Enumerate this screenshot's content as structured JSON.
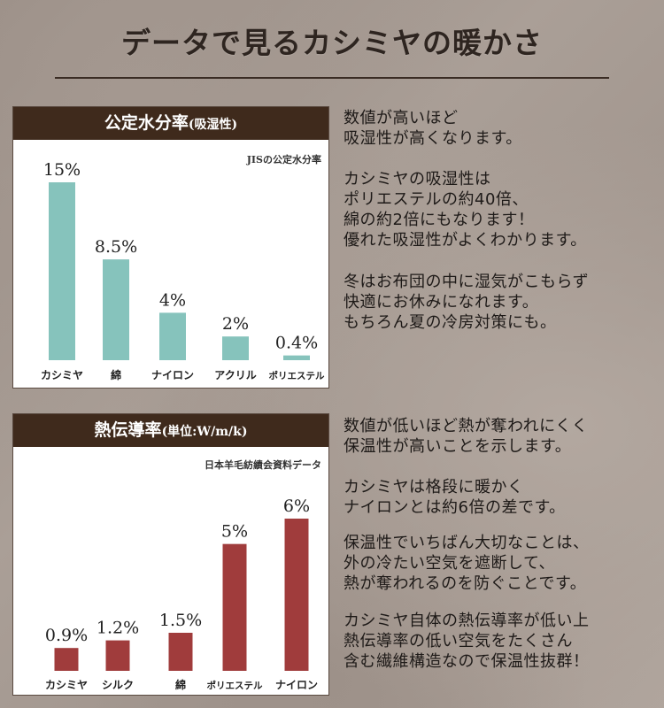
{
  "title": "データで見るカシミヤの暖かさ",
  "colors": {
    "header_bg": "#3f2a1c",
    "teal_bar": "#86c3bc",
    "red_bar": "#a03c3c"
  },
  "chart_data": [
    {
      "type": "bar",
      "title": "公定水分率",
      "title_suffix": "(吸湿性)",
      "source": "JISの公定水分率",
      "categories": [
        "カシミヤ",
        "綿",
        "ナイロン",
        "アクリル",
        "ポリエステル"
      ],
      "values": [
        15,
        8.5,
        4,
        2,
        0.4
      ],
      "value_labels": [
        "15%",
        "8.5%",
        "4%",
        "2%",
        "0.4%"
      ],
      "ylim": [
        0,
        15
      ],
      "color": "#86c3bc"
    },
    {
      "type": "bar",
      "title": "熱伝導率",
      "title_suffix": "(単位:W/m/k)",
      "source": "日本羊毛紡績会資料データ",
      "categories": [
        "カシミヤ",
        "シルク",
        "綿",
        "ポリエステル",
        "ナイロン"
      ],
      "values": [
        0.9,
        1.2,
        1.5,
        5,
        6
      ],
      "value_labels": [
        "0.9%",
        "1.2%",
        "1.5%",
        "5%",
        "6%"
      ],
      "ylim": [
        0,
        6
      ],
      "color": "#a03c3c"
    }
  ],
  "text": {
    "moisture_1": "数値が高いほど\n吸湿性が高くなります。",
    "moisture_2": "カシミヤの吸湿性は\nポリエステルの約40倍、\n綿の約2倍にもなります！\n優れた吸湿性がよくわかります。",
    "moisture_3": "冬はお布団の中に湿気がこもらず\n快適にお休みになれます。\nもちろん夏の冷房対策にも。",
    "thermal_1": "数値が低いほど熱が奪われにくく\n保温性が高いことを示します。",
    "thermal_2": "カシミヤは格段に暖かく\nナイロンとは約6倍の差です。",
    "thermal_3": "保温性でいちばん大切なことは、\n外の冷たい空気を遮断して、\n熱が奪われるのを防ぐことです。",
    "thermal_4": "カシミヤ自体の熱伝導率が低い上\n熱伝導率の低い空気をたくさん\n含む繊維構造なので保温性抜群！"
  }
}
